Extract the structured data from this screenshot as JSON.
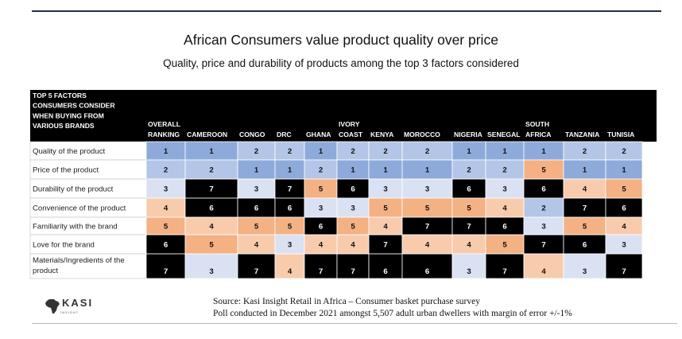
{
  "page": {
    "title": "African Consumers value product quality over price",
    "subtitle": "Quality, price and durability of products among the top 3 factors considered",
    "source_line1": "Source: Kasi Insight  Retail in Africa – Consumer basket purchase survey",
    "source_line2": "Poll conducted in December 2021 amongst 5,507 adult urban dwellers with margin of error +/-1%",
    "logo_text": "KASI",
    "logo_subtext": "INSIGHT"
  },
  "chart_data": {
    "type": "table",
    "corner_header": [
      "TOP 5 FACTORS",
      "CONSUMERS CONSIDER",
      "WHEN BUYING FROM",
      "VARIOUS BRANDS"
    ],
    "columns": [
      [
        "OVERALL",
        "RANKING"
      ],
      [
        "CAMEROON"
      ],
      [
        "CONGO"
      ],
      [
        "DRC"
      ],
      [
        "GHANA"
      ],
      [
        "IVORY",
        "COAST"
      ],
      [
        "KENYA"
      ],
      [
        "MOROCCO"
      ],
      [
        "NIGERIA"
      ],
      [
        "SENEGAL"
      ],
      [
        "SOUTH",
        "AFRICA"
      ],
      [
        "TANZANIA"
      ],
      [
        "TUNISIA"
      ]
    ],
    "rows": [
      {
        "label": [
          "Quality of the product"
        ],
        "values": [
          1,
          1,
          2,
          2,
          1,
          2,
          2,
          2,
          1,
          1,
          1,
          2,
          2
        ]
      },
      {
        "label": [
          "Price of the product"
        ],
        "values": [
          2,
          2,
          1,
          1,
          2,
          1,
          1,
          1,
          2,
          2,
          5,
          1,
          1
        ]
      },
      {
        "label": [
          "Durability of the product"
        ],
        "values": [
          3,
          7,
          3,
          7,
          5,
          6,
          3,
          3,
          6,
          3,
          6,
          4,
          5
        ]
      },
      {
        "label": [
          "Convenience of the product"
        ],
        "values": [
          4,
          6,
          6,
          6,
          3,
          3,
          5,
          5,
          5,
          4,
          2,
          7,
          6
        ]
      },
      {
        "label": [
          "Familiarity with the brand"
        ],
        "values": [
          5,
          4,
          5,
          5,
          6,
          5,
          4,
          7,
          7,
          6,
          3,
          5,
          4
        ]
      },
      {
        "label": [
          "Love for the brand"
        ],
        "values": [
          6,
          5,
          4,
          3,
          4,
          4,
          7,
          4,
          4,
          5,
          7,
          6,
          3
        ]
      },
      {
        "label": [
          "Materials/Ingredients of the",
          "product"
        ],
        "values": [
          7,
          3,
          7,
          4,
          7,
          7,
          6,
          6,
          3,
          7,
          4,
          3,
          7
        ]
      }
    ],
    "rank_colors": {
      "1": "#8eaadb",
      "2": "#b4c6e7",
      "3": "#d9e1f2",
      "4": "#f8cbad",
      "5": "#f4b183",
      "6": "#000000",
      "7": "#000000"
    }
  }
}
